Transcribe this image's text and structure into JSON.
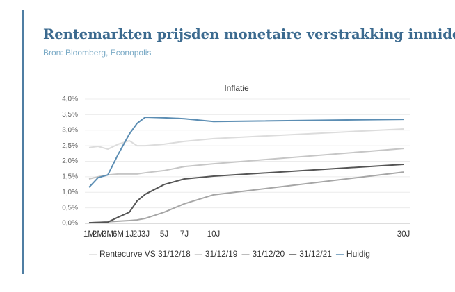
{
  "header": {
    "title": "Rentemarkten prijsden monetaire verstrakking inmiddels in",
    "subtitle": "Bron: Bloomberg, Econopolis"
  },
  "chart_data": {
    "type": "line",
    "title": "Inflatie",
    "categories": [
      "1M",
      "2M",
      "3M",
      "6M",
      "1J",
      "2J",
      "3J",
      "5J",
      "7J",
      "10J",
      "30J"
    ],
    "series": [
      {
        "name": "Rentecurve VS 31/12/18",
        "color": "#dcdcdc",
        "values": [
          2.44,
          2.48,
          2.39,
          2.55,
          2.66,
          2.5,
          2.5,
          2.55,
          2.64,
          2.73,
          3.04
        ]
      },
      {
        "name": "31/12/19",
        "color": "#c6c6c6",
        "values": [
          1.43,
          1.5,
          1.56,
          1.59,
          1.59,
          1.59,
          1.63,
          1.7,
          1.83,
          1.92,
          2.41
        ]
      },
      {
        "name": "31/12/20",
        "color": "#a6a6a6",
        "values": [
          0.02,
          0.03,
          0.05,
          0.07,
          0.09,
          0.11,
          0.16,
          0.36,
          0.63,
          0.92,
          1.65
        ]
      },
      {
        "name": "31/12/21",
        "color": "#555555",
        "values": [
          0.02,
          0.03,
          0.04,
          0.2,
          0.36,
          0.72,
          0.94,
          1.25,
          1.43,
          1.52,
          1.9
        ]
      },
      {
        "name": "Huidig",
        "color": "#5b8db3",
        "values": [
          1.16,
          1.47,
          1.56,
          2.23,
          2.88,
          3.22,
          3.42,
          3.4,
          3.37,
          3.28,
          3.35
        ]
      }
    ],
    "ylim": [
      0,
      4
    ],
    "yticks": [
      {
        "value": 0,
        "label": "0,0%"
      },
      {
        "value": 0.5,
        "label": "0,5%"
      },
      {
        "value": 1,
        "label": "1,0%"
      },
      {
        "value": 1.5,
        "label": "1,5%"
      },
      {
        "value": 2,
        "label": "2,0%"
      },
      {
        "value": 2.5,
        "label": "2,5%"
      },
      {
        "value": 3,
        "label": "3,0%"
      },
      {
        "value": 3.5,
        "label": "3,5%"
      },
      {
        "value": 4,
        "label": "4,0%"
      }
    ],
    "grid": true
  }
}
